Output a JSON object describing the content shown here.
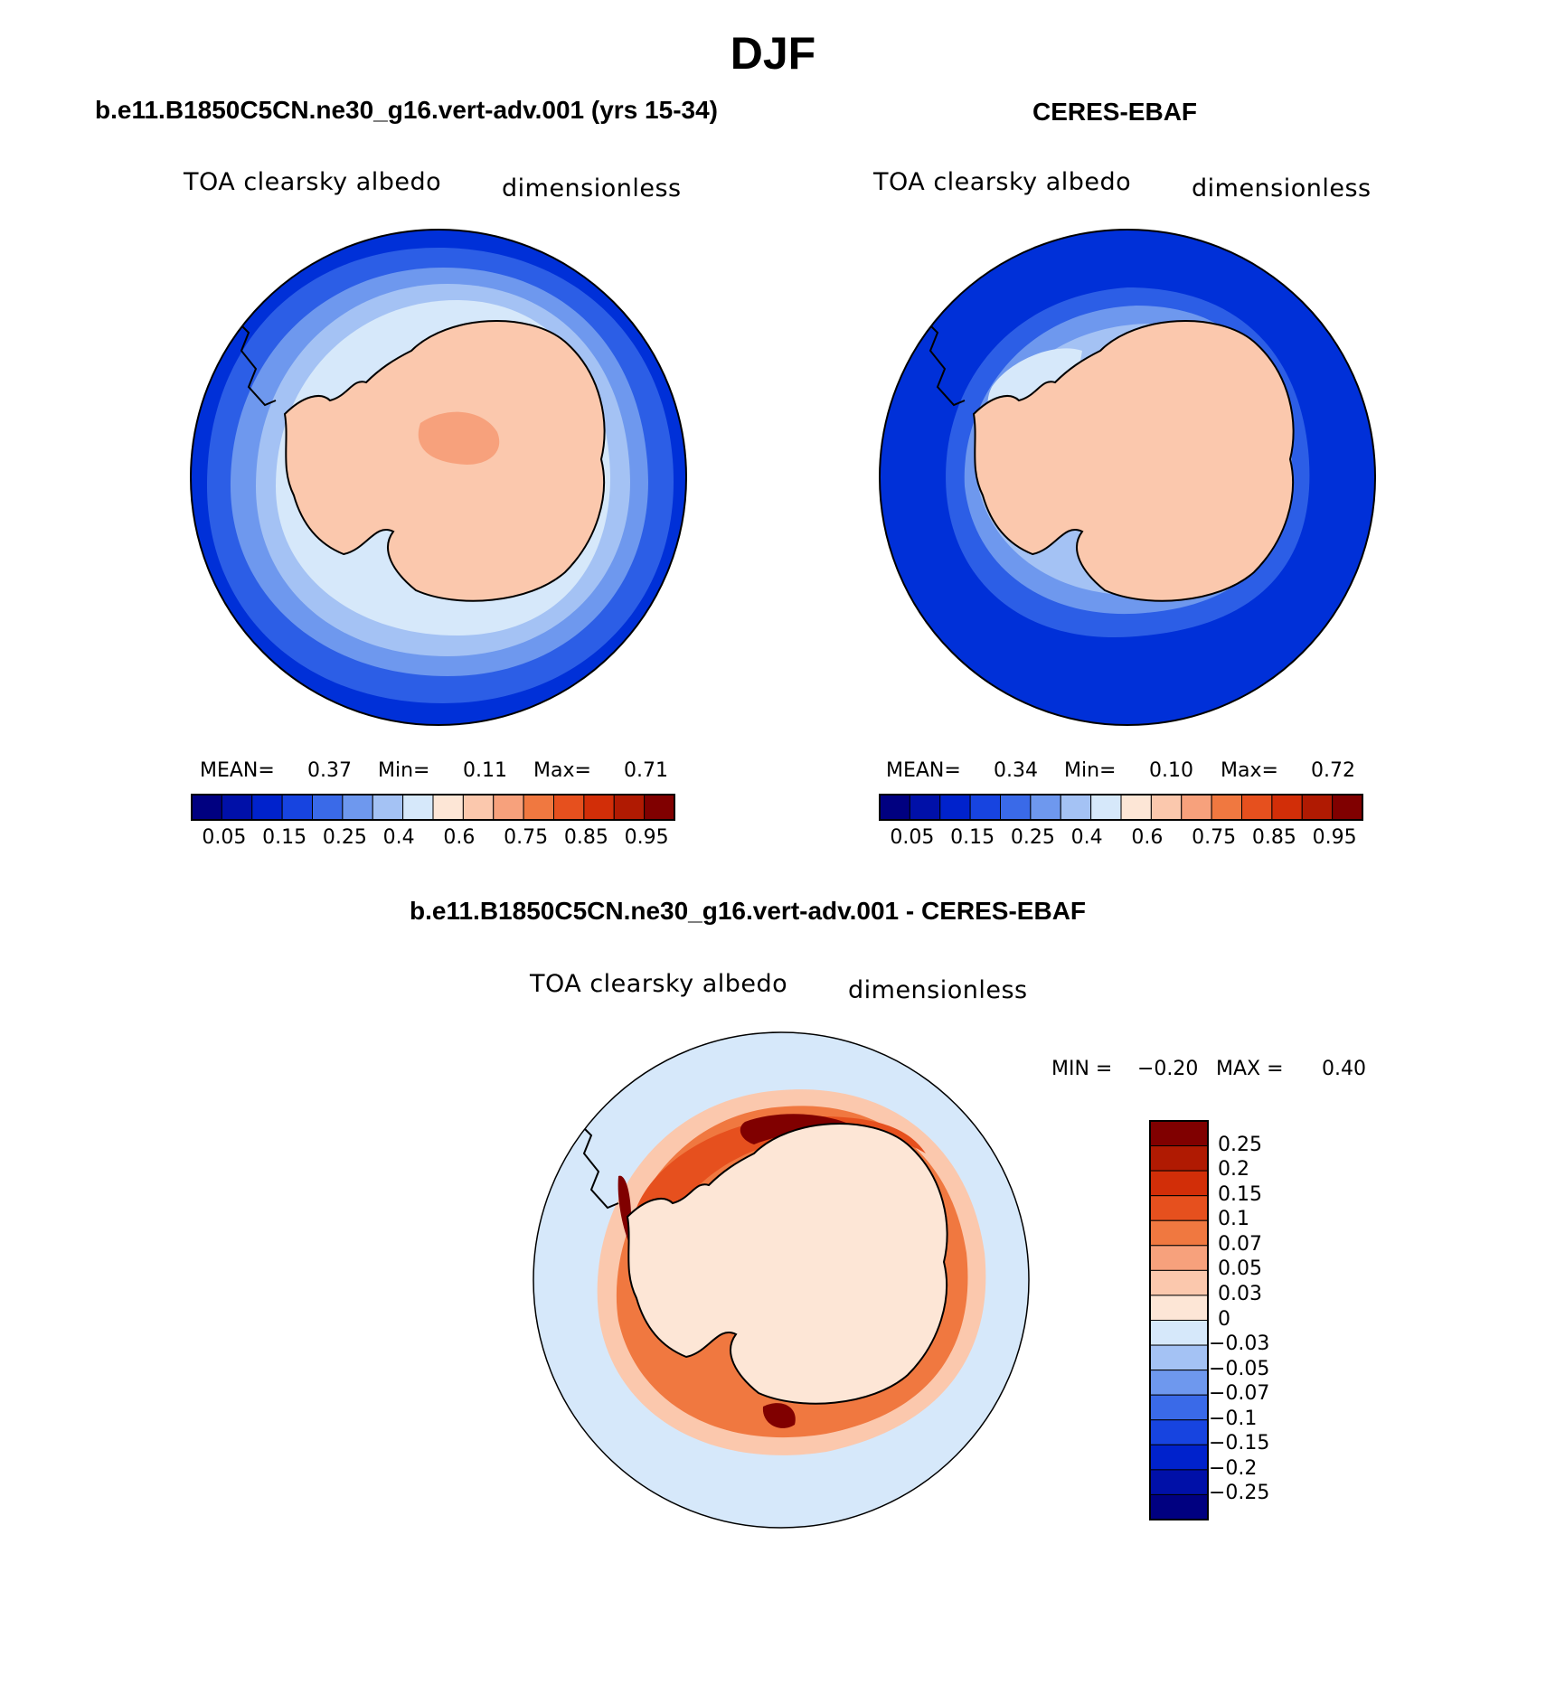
{
  "figure": {
    "season": "DJF",
    "variable": "TOA clearsky albedo",
    "units": "dimensionless"
  },
  "panels": {
    "model": {
      "title": "b.e11.B1850C5CN.ne30_g16.vert-adv.001 (yrs 15-34)",
      "mean_label": "MEAN=",
      "mean": "0.37",
      "min_label": "Min=",
      "min": "0.11",
      "max_label": "Max=",
      "max": "0.71"
    },
    "obs": {
      "title": "CERES-EBAF",
      "mean_label": "MEAN=",
      "mean": "0.34",
      "min_label": "Min=",
      "min": "0.10",
      "max_label": "Max=",
      "max": "0.72"
    },
    "diff": {
      "title": "b.e11.B1850C5CN.ne30_g16.vert-adv.001 - CERES-EBAF",
      "min_label": "MIN =",
      "min": "−0.20",
      "max_label": "MAX =",
      "max": "0.40"
    }
  },
  "colorbar_abs": {
    "colors": [
      "#000080",
      "#0010a8",
      "#0022cc",
      "#1744e0",
      "#3a6ae8",
      "#6e98ee",
      "#a4c2f4",
      "#d6e8fa",
      "#fde6d6",
      "#fbc8ad",
      "#f7a17c",
      "#f07840",
      "#e6501e",
      "#d22e08",
      "#b01a02",
      "#800000"
    ],
    "labels": [
      "0.05",
      "0.15",
      "0.25",
      "0.4",
      "0.6",
      "0.75",
      "0.85",
      "0.95"
    ]
  },
  "colorbar_diff": {
    "colors": [
      "#800000",
      "#b01a02",
      "#d22e08",
      "#e6501e",
      "#f07840",
      "#f7a17c",
      "#fbc8ad",
      "#fde6d6",
      "#d6e8fa",
      "#a4c2f4",
      "#6e98ee",
      "#3a6ae8",
      "#1744e0",
      "#0022cc",
      "#0010a8",
      "#000080"
    ],
    "labels": [
      "0.25",
      "0.2",
      "0.15",
      "0.1",
      "0.07",
      "0.05",
      "0.03",
      "0",
      "−0.03",
      "−0.05",
      "−0.07",
      "−0.1",
      "−0.15",
      "−0.2",
      "−0.25"
    ]
  },
  "map_colors": {
    "ocean_abs": "#0030d8",
    "ocean_ring_2": "#2c5ee6",
    "ocean_ring_3": "#6e98ee",
    "ice_ring": "#a4c2f4",
    "pale_ring": "#d6e8fa",
    "continent": "#fbc8ad",
    "continent_high": "#f7a17c",
    "diff_bg": "#d6e8fa",
    "diff_ring_light": "#fbc8ad",
    "diff_ring_mid": "#f07840",
    "diff_ring_strong": "#e6501e",
    "diff_ring_max": "#800000",
    "diff_continent": "#fde6d6"
  }
}
